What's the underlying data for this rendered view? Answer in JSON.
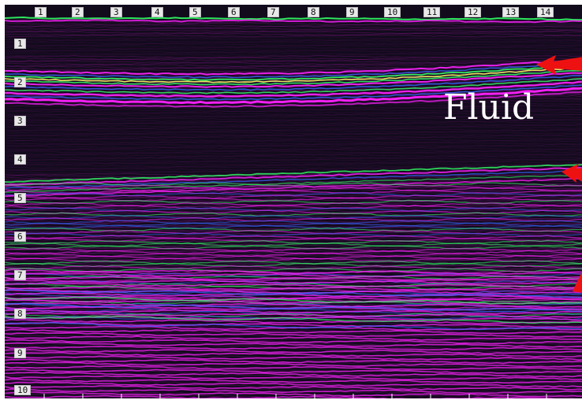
{
  "image": {
    "annotation": "Fluid",
    "horizontal_scale_labels": [
      "1",
      "2",
      "3",
      "4",
      "5",
      "6",
      "7",
      "8",
      "9",
      "10",
      "11",
      "12",
      "13",
      "14"
    ],
    "vertical_scale_labels": [
      "1",
      "2",
      "3",
      "4",
      "5",
      "6",
      "7",
      "8",
      "9",
      "10"
    ],
    "colors": {
      "background": "#120b1c",
      "magenta": "#ff22ff",
      "green": "#33ff66",
      "blue": "#3366ff",
      "yellow": "#ffff66",
      "arrow": "#ee1111",
      "annotation_text": "#ffffff"
    },
    "arrows": 3
  }
}
